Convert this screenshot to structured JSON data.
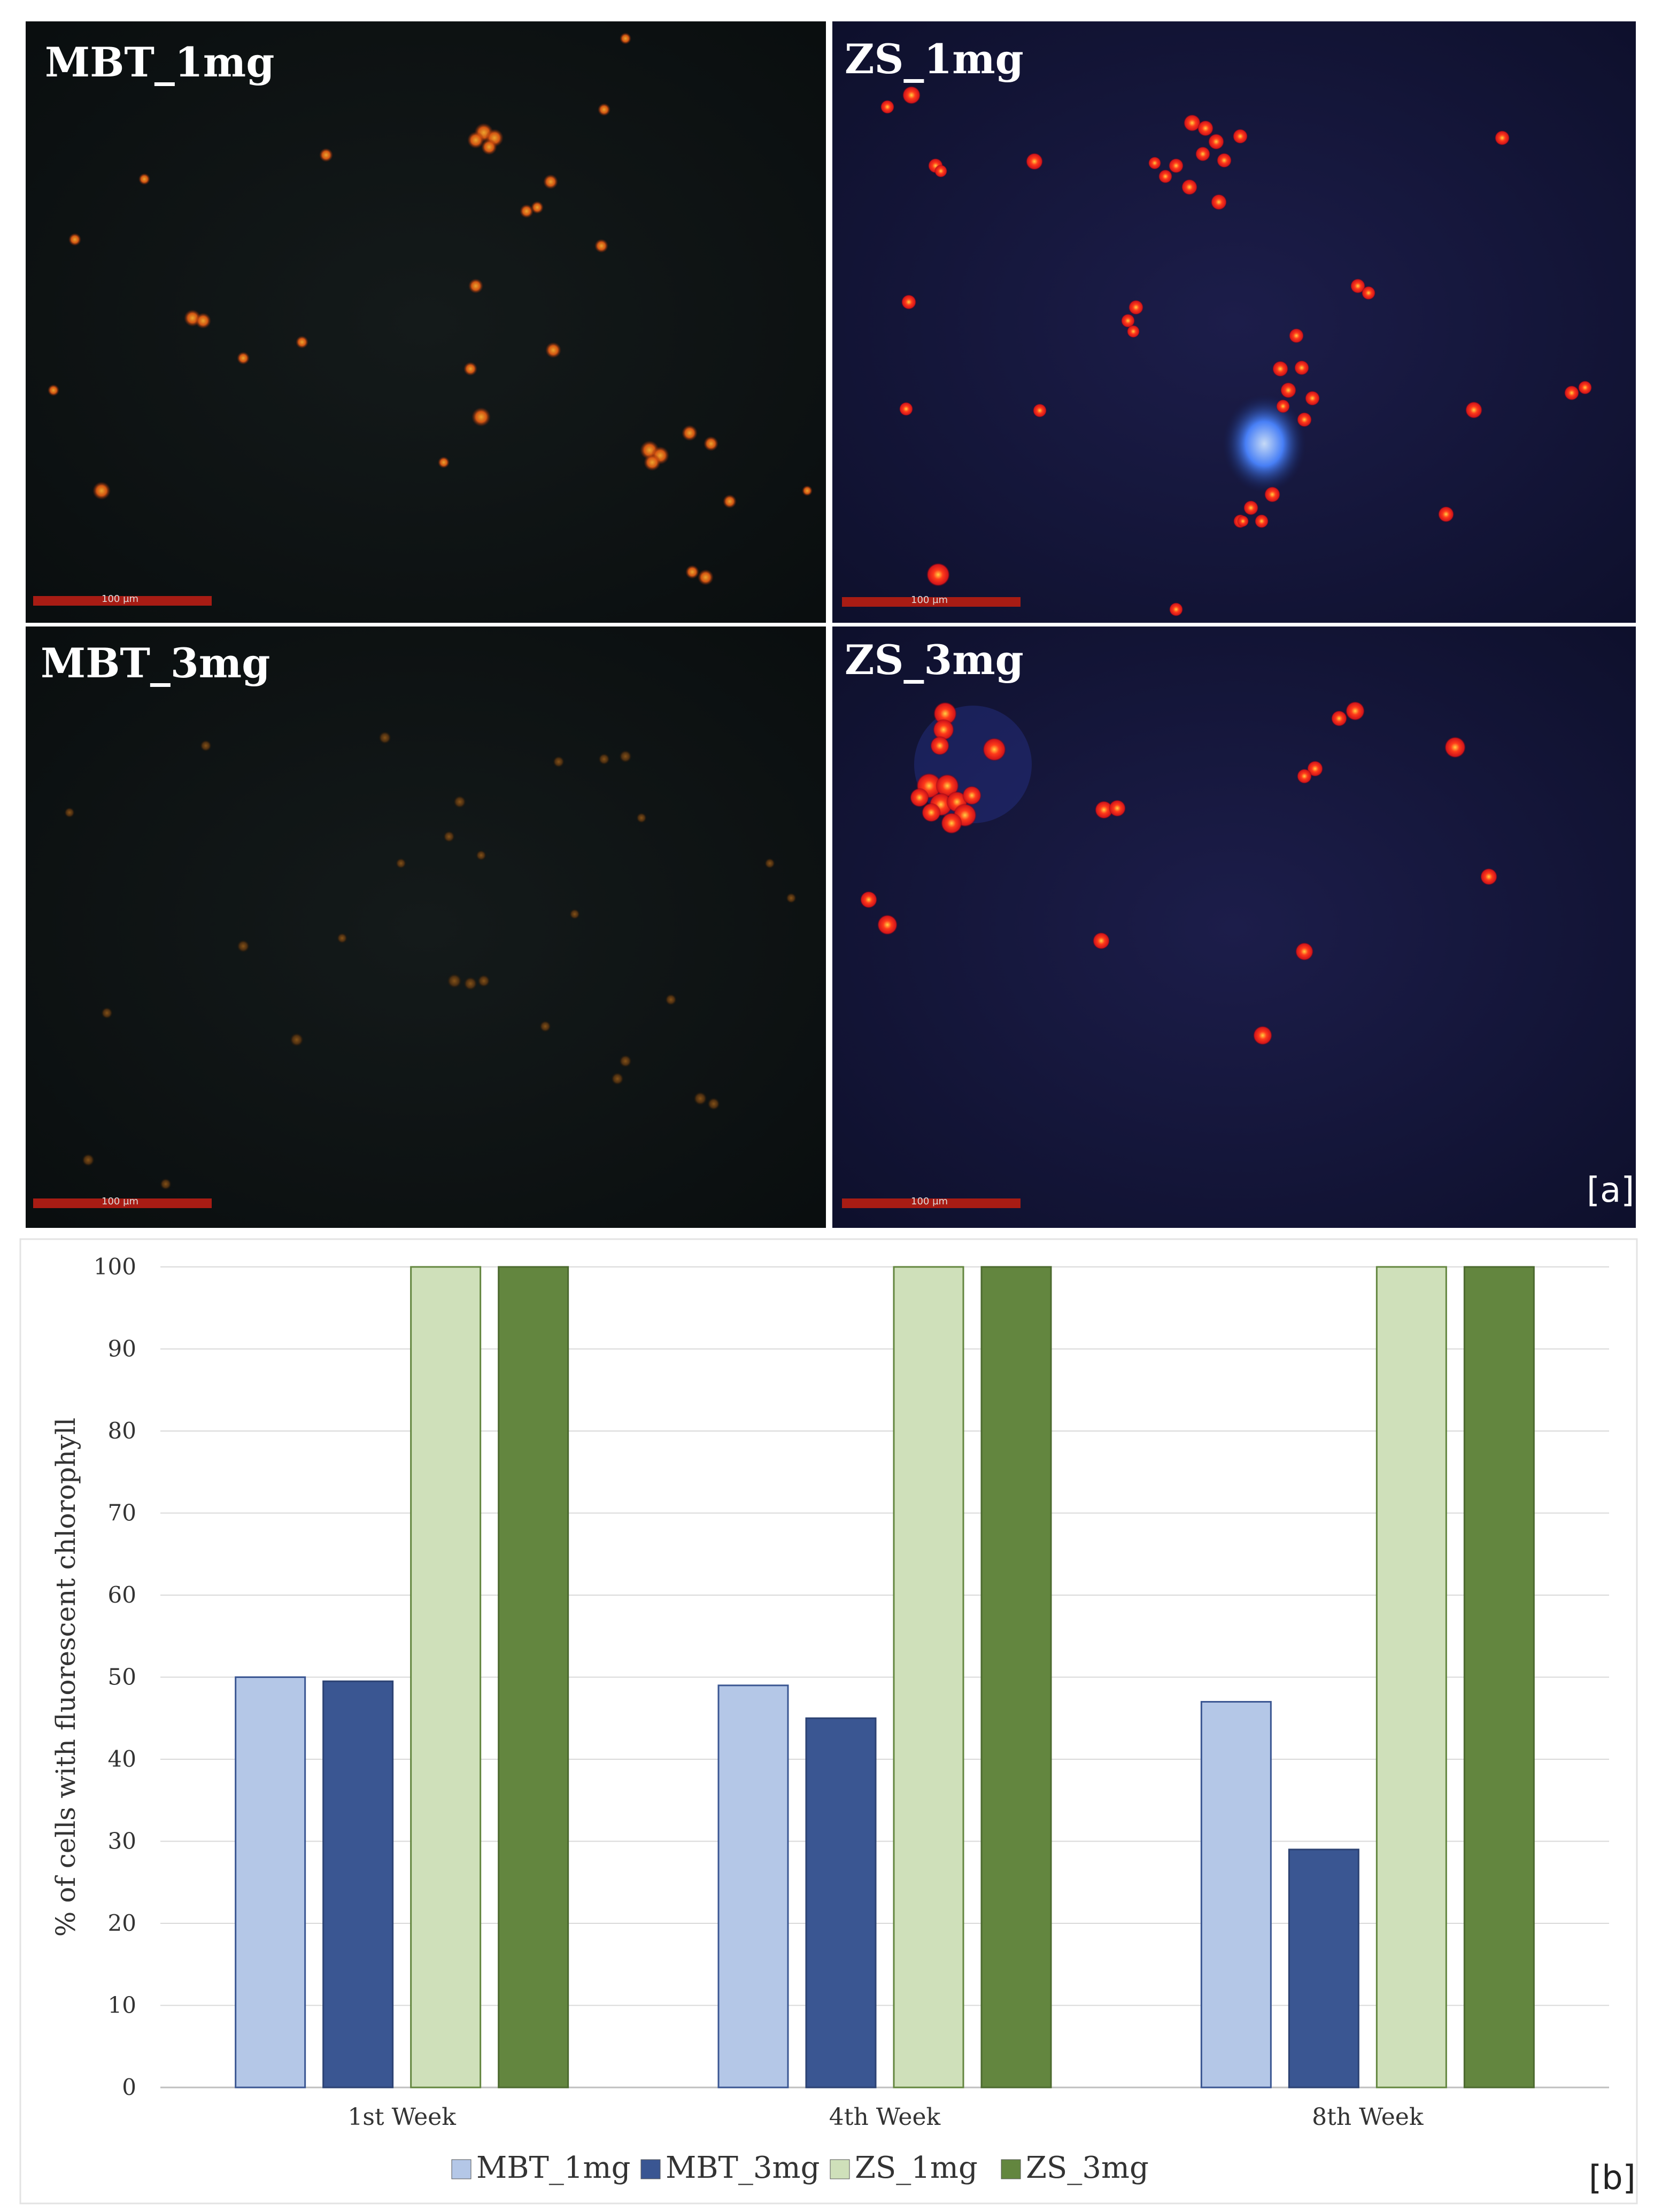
{
  "micrographs": {
    "panels": [
      {
        "label": "MBT_1mg",
        "scale": "100 µm"
      },
      {
        "label": "ZS_1mg",
        "scale": "100 µm"
      },
      {
        "label": "MBT_3mg",
        "scale": "100 µm"
      },
      {
        "label": "ZS_3mg",
        "scale": "100 µm"
      }
    ],
    "corner_label": "[a]"
  },
  "chart_corner_label": "[b]",
  "chart_data": {
    "type": "bar",
    "categories": [
      "1st Week",
      "4th Week",
      "8th Week"
    ],
    "series": [
      {
        "name": "MBT_1mg",
        "values": [
          50,
          49,
          47
        ],
        "color": "#b4c7e7"
      },
      {
        "name": "MBT_3mg",
        "values": [
          49.5,
          45,
          29
        ],
        "color": "#3a5692"
      },
      {
        "name": "ZS_1mg",
        "values": [
          100,
          100,
          100
        ],
        "color": "#cfe0ba"
      },
      {
        "name": "ZS_3mg",
        "values": [
          100,
          100,
          100
        ],
        "color": "#63863f"
      }
    ],
    "title": "",
    "xlabel": "",
    "ylabel": "% of cells with fluorescent chlorophyll",
    "ylim": [
      0,
      100
    ],
    "yticks": [
      0,
      10,
      20,
      30,
      40,
      50,
      60,
      70,
      80,
      90,
      100
    ],
    "grid": true,
    "legend": "bottom"
  }
}
